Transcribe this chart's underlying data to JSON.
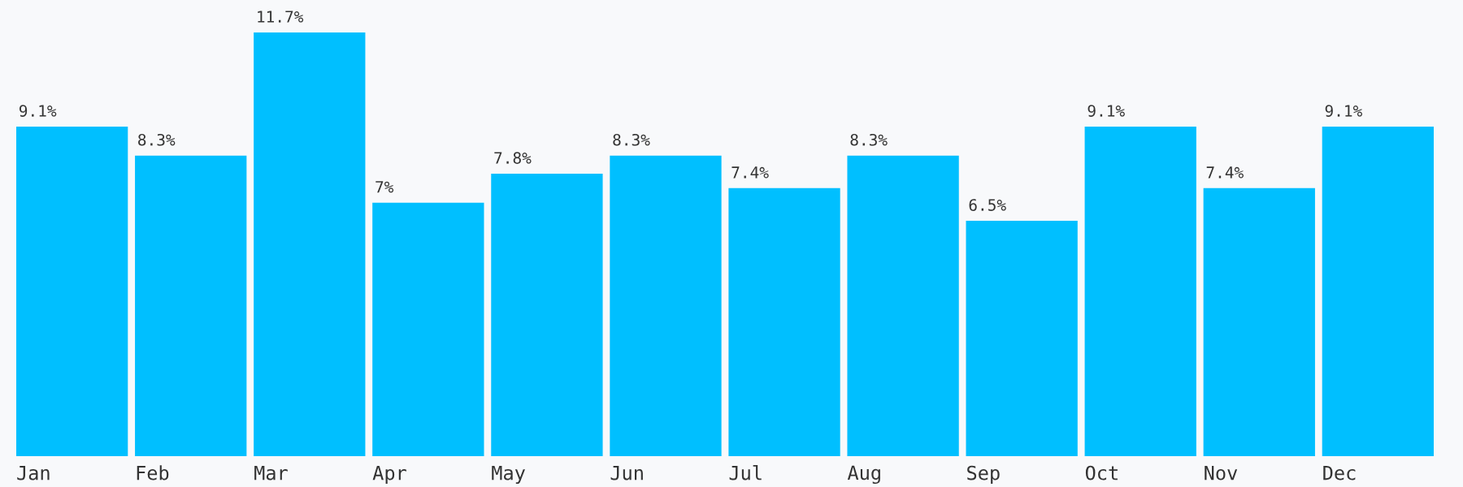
{
  "chart_data": {
    "type": "bar",
    "categories": [
      "Jan",
      "Feb",
      "Mar",
      "Apr",
      "May",
      "Jun",
      "Jul",
      "Aug",
      "Sep",
      "Oct",
      "Nov",
      "Dec"
    ],
    "values": [
      9.1,
      8.3,
      11.7,
      7,
      7.8,
      8.3,
      7.4,
      8.3,
      6.5,
      9.1,
      7.4,
      9.1
    ],
    "value_labels": [
      "9.1%",
      "8.3%",
      "11.7%",
      "7%",
      "7.8%",
      "8.3%",
      "7.4%",
      "8.3%",
      "6.5%",
      "9.1%",
      "7.4%",
      "9.1%"
    ],
    "color": "#00bfff",
    "grid": false,
    "legend": false
  }
}
